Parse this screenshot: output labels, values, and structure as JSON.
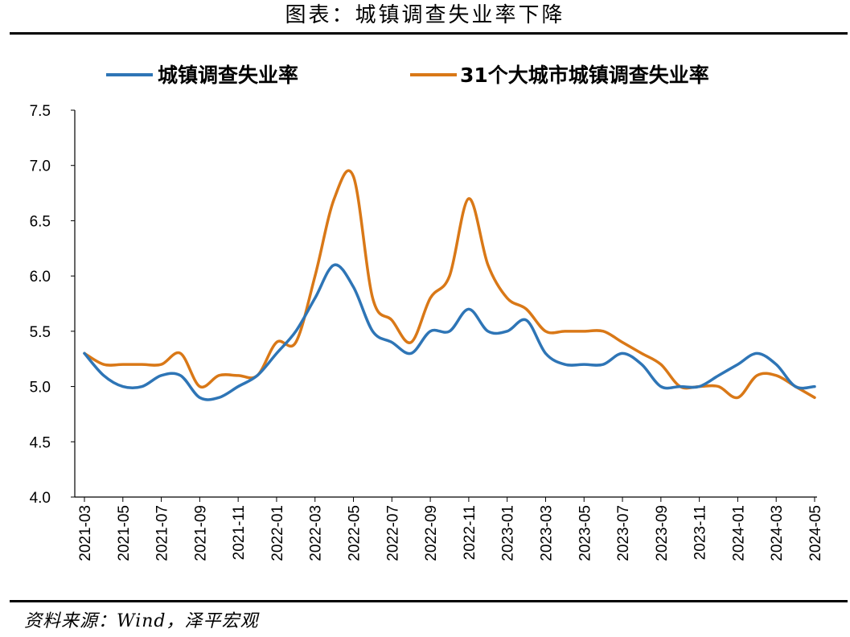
{
  "page": {
    "title": "图表：城镇调查失业率下降",
    "source": "资料来源：Wind，泽平宏观"
  },
  "chart_data": {
    "type": "line",
    "title": "图表：城镇调查失业率下降",
    "xlabel": "",
    "ylabel": "",
    "ylim": [
      4.0,
      7.5
    ],
    "yticks": [
      "4.0",
      "4.5",
      "5.0",
      "5.5",
      "6.0",
      "6.5",
      "7.0",
      "7.5"
    ],
    "grid": false,
    "legend_position": "top",
    "x": [
      "2021-03",
      "2021-04",
      "2021-05",
      "2021-06",
      "2021-07",
      "2021-08",
      "2021-09",
      "2021-10",
      "2021-11",
      "2021-12",
      "2022-01",
      "2022-02",
      "2022-03",
      "2022-04",
      "2022-05",
      "2022-06",
      "2022-07",
      "2022-08",
      "2022-09",
      "2022-10",
      "2022-11",
      "2022-12",
      "2023-01",
      "2023-02",
      "2023-03",
      "2023-04",
      "2023-05",
      "2023-06",
      "2023-07",
      "2023-08",
      "2023-09",
      "2023-10",
      "2023-11",
      "2023-12",
      "2024-01",
      "2024-02",
      "2024-03",
      "2024-04",
      "2024-05"
    ],
    "xtick_labels": [
      "2021-03",
      "2021-05",
      "2021-07",
      "2021-09",
      "2021-11",
      "2022-01",
      "2022-03",
      "2022-05",
      "2022-07",
      "2022-09",
      "2022-11",
      "2023-01",
      "2023-03",
      "2023-05",
      "2023-07",
      "2023-09",
      "2023-11",
      "2024-01",
      "2024-03",
      "2024-05"
    ],
    "series": [
      {
        "name": "城镇调查失业率",
        "color": "#2E75B6",
        "values": [
          5.3,
          5.1,
          5.0,
          5.0,
          5.1,
          5.1,
          4.9,
          4.9,
          5.0,
          5.1,
          5.3,
          5.5,
          5.8,
          6.1,
          5.9,
          5.5,
          5.4,
          5.3,
          5.5,
          5.5,
          5.7,
          5.5,
          5.5,
          5.6,
          5.3,
          5.2,
          5.2,
          5.2,
          5.3,
          5.2,
          5.0,
          5.0,
          5.0,
          5.1,
          5.2,
          5.3,
          5.2,
          5.0,
          5.0
        ]
      },
      {
        "name": "31个大城市城镇调查失业率",
        "color": "#D97817",
        "values": [
          5.3,
          5.2,
          5.2,
          5.2,
          5.2,
          5.3,
          5.0,
          5.1,
          5.1,
          5.1,
          5.4,
          5.4,
          6.0,
          6.7,
          6.9,
          5.8,
          5.6,
          5.4,
          5.8,
          6.0,
          6.7,
          6.1,
          5.8,
          5.7,
          5.5,
          5.5,
          5.5,
          5.5,
          5.4,
          5.3,
          5.2,
          5.0,
          5.0,
          5.0,
          4.9,
          5.1,
          5.1,
          5.0,
          4.9
        ]
      }
    ]
  }
}
